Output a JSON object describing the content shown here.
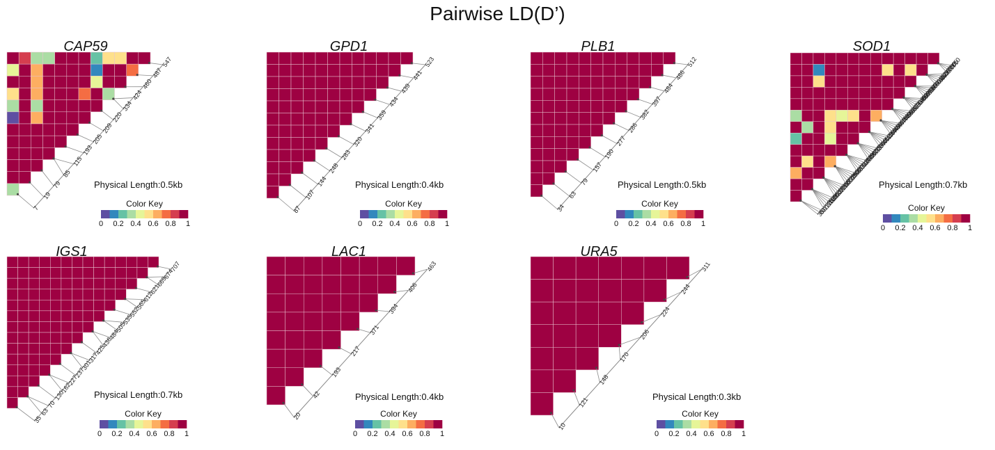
{
  "figure": {
    "title": "Pairwise LD(D’)"
  },
  "colors": {
    "ld_high": "#9e0142",
    "grid": "#e8c4cf",
    "connector": "#8a8a8a",
    "spectral": [
      "#5e4fa2",
      "#3288bd",
      "#66c2a5",
      "#abdda4",
      "#e6f598",
      "#fee08b",
      "#fdae61",
      "#f46d43",
      "#d53e4f",
      "#9e0142"
    ]
  },
  "chart_data": [
    {
      "type": "heatmap",
      "title": "CAP59",
      "positions": [
        7,
        19,
        79,
        85,
        115,
        193,
        205,
        209,
        220,
        334,
        424,
        460,
        487,
        547
      ],
      "physical_length": "Physical Length:0.5kb",
      "color_key": {
        "title": "Color Key",
        "ticks": [
          "0",
          "0.2",
          "0.4",
          "0.6",
          "0.8",
          "1"
        ]
      },
      "low_ld_cells": [
        {
          "row": 0,
          "col": 1,
          "value": 0.8
        },
        {
          "row": 0,
          "col": 2,
          "value": 0.3
        },
        {
          "row": 0,
          "col": 3,
          "value": 0.3
        },
        {
          "row": 0,
          "col": 7,
          "value": 0.2
        },
        {
          "row": 0,
          "col": 8,
          "value": 0.5
        },
        {
          "row": 0,
          "col": 9,
          "value": 0.5
        },
        {
          "row": 1,
          "col": 0,
          "value": 0.4
        },
        {
          "row": 1,
          "col": 2,
          "value": 0.6
        },
        {
          "row": 1,
          "col": 7,
          "value": 0.1
        },
        {
          "row": 1,
          "col": 10,
          "value": 0.7
        },
        {
          "row": 2,
          "col": 2,
          "value": 0.6
        },
        {
          "row": 2,
          "col": 7,
          "value": 0.4
        },
        {
          "row": 3,
          "col": 0,
          "value": 0.5
        },
        {
          "row": 3,
          "col": 2,
          "value": 0.6
        },
        {
          "row": 3,
          "col": 6,
          "value": 0.7
        },
        {
          "row": 3,
          "col": 8,
          "value": 0.3
        },
        {
          "row": 4,
          "col": 0,
          "value": 0.3
        },
        {
          "row": 4,
          "col": 2,
          "value": 0.3
        },
        {
          "row": 5,
          "col": 0,
          "value": 0.05
        },
        {
          "row": 5,
          "col": 2,
          "value": 0.6
        },
        {
          "row": 11,
          "col": 0,
          "value": 0.3
        }
      ]
    },
    {
      "type": "heatmap",
      "title": "GPD1",
      "positions": [
        87,
        107,
        144,
        248,
        283,
        320,
        341,
        359,
        434,
        439,
        441,
        523
      ],
      "physical_length": "Physical Length:0.4kb",
      "color_key": {
        "title": "Color Key",
        "ticks": [
          "0",
          "0.2",
          "0.4",
          "0.6",
          "0.8",
          "1"
        ]
      },
      "low_ld_cells": []
    },
    {
      "type": "heatmap",
      "title": "PLB1",
      "positions": [
        34,
        63,
        79,
        157,
        190,
        277,
        286,
        382,
        397,
        484,
        486,
        512
      ],
      "physical_length": "Physical Length:0.5kb",
      "color_key": {
        "title": "Color Key",
        "ticks": [
          "0",
          "0.2",
          "0.4",
          "0.6",
          "0.8",
          "1"
        ]
      },
      "low_ld_cells": []
    },
    {
      "type": "heatmap",
      "title": "SOD1",
      "positions": [
        35,
        61,
        97,
        133,
        175,
        182,
        189,
        196,
        203,
        210,
        237,
        244,
        251,
        258,
        265,
        272,
        279,
        286,
        293,
        300,
        307,
        314,
        321,
        328,
        335,
        342,
        349,
        356,
        363,
        370,
        377,
        384,
        391,
        398,
        405,
        412,
        419,
        426,
        433,
        440,
        447,
        454,
        461,
        468,
        475,
        482,
        489,
        496,
        503,
        510,
        517,
        524,
        531,
        538,
        545,
        552,
        559,
        566,
        573,
        580,
        587,
        594,
        601,
        608,
        615,
        622,
        629,
        637,
        667,
        689,
        700,
        705,
        710
      ],
      "physical_length": "Physical Length:0.7kb",
      "color_key": {
        "title": "Color Key",
        "ticks": [
          "0",
          "0.2",
          "0.4",
          "0.6",
          "0.8",
          "1"
        ]
      },
      "low_ld_cells": [
        {
          "row": 1,
          "col": 2,
          "value": 0.1
        },
        {
          "row": 2,
          "col": 2,
          "value": 0.5
        },
        {
          "row": 1,
          "col": 8,
          "value": 0.5
        },
        {
          "row": 1,
          "col": 10,
          "value": 0.5
        },
        {
          "row": 1,
          "col": 13,
          "value": 0.5
        },
        {
          "row": 5,
          "col": 0,
          "value": 0.3
        },
        {
          "row": 5,
          "col": 3,
          "value": 0.5
        },
        {
          "row": 5,
          "col": 4,
          "value": 0.4
        },
        {
          "row": 5,
          "col": 5,
          "value": 0.5
        },
        {
          "row": 5,
          "col": 7,
          "value": 0.6
        },
        {
          "row": 5,
          "col": 8,
          "value": 0.4
        },
        {
          "row": 5,
          "col": 9,
          "value": 0.4
        },
        {
          "row": 5,
          "col": 10,
          "value": 0.5
        },
        {
          "row": 6,
          "col": 1,
          "value": 0.3
        },
        {
          "row": 6,
          "col": 3,
          "value": 0.5
        },
        {
          "row": 6,
          "col": 8,
          "value": 0.3
        },
        {
          "row": 6,
          "col": 10,
          "value": 0.5
        },
        {
          "row": 7,
          "col": 0,
          "value": 0.2
        },
        {
          "row": 7,
          "col": 3,
          "value": 0.4
        },
        {
          "row": 7,
          "col": 7,
          "value": 0.6
        },
        {
          "row": 7,
          "col": 9,
          "value": 0.6
        },
        {
          "row": 9,
          "col": 1,
          "value": 0.5
        },
        {
          "row": 9,
          "col": 3,
          "value": 0.6
        },
        {
          "row": 9,
          "col": 6,
          "value": 0.5
        },
        {
          "row": 9,
          "col": 9,
          "value": 0.7
        },
        {
          "row": 10,
          "col": 0,
          "value": 0.6
        },
        {
          "row": 10,
          "col": 3,
          "value": 0.5
        },
        {
          "row": 10,
          "col": 5,
          "value": 0.5
        },
        {
          "row": 10,
          "col": 6,
          "value": 0.5
        },
        {
          "row": 11,
          "col": 3,
          "value": 0.6
        },
        {
          "row": 11,
          "col": 5,
          "value": 0.4
        },
        {
          "row": 13,
          "col": 0,
          "value": 0.4
        }
      ]
    },
    {
      "type": "heatmap",
      "title": "IGS1",
      "positions": [
        35,
        63,
        70,
        130,
        162,
        227,
        237,
        301,
        317,
        425,
        436,
        484,
        505,
        535,
        552,
        565,
        612,
        621,
        669,
        674,
        707
      ],
      "physical_length": "Physical Length:0.7kb",
      "color_key": {
        "title": "Color Key",
        "ticks": [
          "0",
          "0.2",
          "0.4",
          "0.6",
          "0.8",
          "1"
        ]
      },
      "low_ld_cells": []
    },
    {
      "type": "heatmap",
      "title": "LAC1",
      "positions": [
        20,
        42,
        193,
        217,
        371,
        394,
        406,
        463
      ],
      "physical_length": "Physical Length:0.4kb",
      "color_key": {
        "title": "Color Key",
        "ticks": [
          "0",
          "0.2",
          "0.4",
          "0.6",
          "0.8",
          "1"
        ]
      },
      "low_ld_cells": []
    },
    {
      "type": "heatmap",
      "title": "URA5",
      "positions": [
        10,
        121,
        148,
        170,
        206,
        224,
        244,
        311
      ],
      "physical_length": "Physical Length:0.3kb",
      "color_key": {
        "title": "Color Key",
        "ticks": [
          "0",
          "0.2",
          "0.4",
          "0.6",
          "0.8",
          "1"
        ]
      },
      "low_ld_cells": []
    }
  ]
}
